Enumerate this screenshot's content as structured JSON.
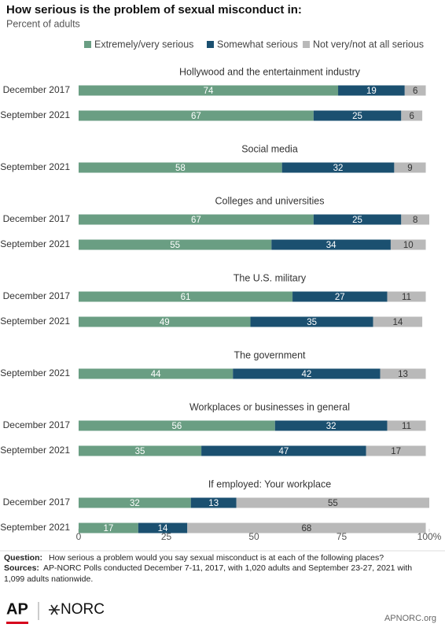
{
  "chart_data": {
    "type": "stacked-bar",
    "orientation": "horizontal",
    "title": "How serious is the problem of sexual misconduct in:",
    "subtitle": "Percent of adults",
    "groups": [
      {
        "title": "Hollywood and the entertainment industry",
        "categories": [
          "December 2017",
          "September 2021"
        ]
      },
      {
        "title": "Social media",
        "categories": [
          "September 2021"
        ]
      },
      {
        "title": "Colleges and universities",
        "categories": [
          "December 2017",
          "September 2021"
        ]
      },
      {
        "title": "The U.S. military",
        "categories": [
          "December 2017",
          "September 2021"
        ]
      },
      {
        "title": "The government",
        "categories": [
          "September 2021"
        ]
      },
      {
        "title": "Workplaces or businesses in general",
        "categories": [
          "December 2017",
          "September 2021"
        ]
      },
      {
        "title": "If employed: Your workplace",
        "categories": [
          "December 2017",
          "September 2021"
        ]
      }
    ],
    "series": [
      {
        "name": "Extremely/very serious",
        "color": "#6a9e83",
        "values": [
          74,
          67,
          58,
          67,
          55,
          61,
          49,
          44,
          56,
          35,
          32,
          17
        ]
      },
      {
        "name": "Somewhat serious",
        "color": "#1b5070",
        "values": [
          19,
          25,
          32,
          25,
          34,
          27,
          35,
          42,
          32,
          47,
          13,
          14
        ]
      },
      {
        "name": "Not very/not at all serious",
        "color": "#b9b9b9",
        "values": [
          6,
          6,
          9,
          8,
          10,
          11,
          14,
          13,
          11,
          17,
          55,
          68
        ]
      }
    ],
    "xlim": [
      0,
      100
    ],
    "xticks": [
      0,
      25,
      50,
      75,
      {
        "value": 100,
        "label": "100%"
      }
    ],
    "legend": "top-right"
  },
  "footer": {
    "question_label": "Question:",
    "question": "How serious a problem would you say sexual misconduct is at each of the following places?",
    "sources_label": "Sources:",
    "sources_line1": "AP-NORC Polls conducted December 7-11, 2017, with 1,020 adults and September 23-27, 2021 with",
    "sources_line2": "1,099 adults nationwide.",
    "logo_ap": "AP",
    "logo_norc": "NORC",
    "site": "APNORC.org"
  }
}
